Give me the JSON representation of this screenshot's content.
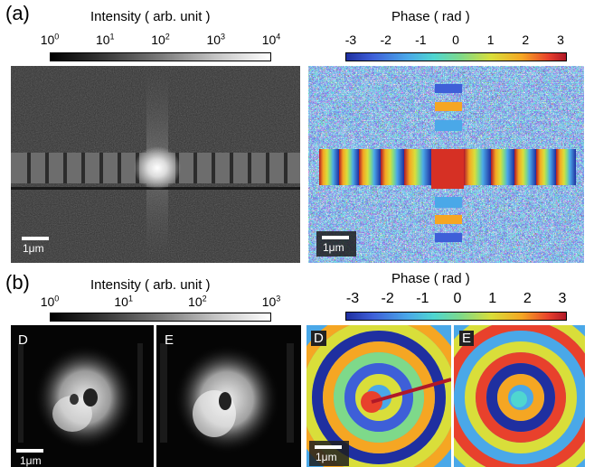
{
  "panel_a": {
    "label": "(a)",
    "intensity": {
      "title": "Intensity ( arb. unit )",
      "ticks": [
        {
          "base": "10",
          "exp": "0"
        },
        {
          "base": "10",
          "exp": "1"
        },
        {
          "base": "10",
          "exp": "2"
        },
        {
          "base": "10",
          "exp": "3"
        },
        {
          "base": "10",
          "exp": "4"
        }
      ],
      "scale": "1μm"
    },
    "phase": {
      "title": "Phase ( rad )",
      "ticks": [
        "-3",
        "-2",
        "-1",
        "0",
        "1",
        "2",
        "3"
      ],
      "scale": "1μm"
    }
  },
  "panel_b": {
    "label": "(b)",
    "intensity": {
      "title": "Intensity ( arb. unit )",
      "ticks": [
        {
          "base": "10",
          "exp": "0"
        },
        {
          "base": "10",
          "exp": "1"
        },
        {
          "base": "10",
          "exp": "2"
        },
        {
          "base": "10",
          "exp": "3"
        }
      ],
      "inset_left": "D",
      "inset_right": "E",
      "scale": "1μm"
    },
    "phase": {
      "title": "Phase ( rad )",
      "ticks": [
        "-3",
        "-2",
        "-1",
        "0",
        "1",
        "2",
        "3"
      ],
      "inset_left": "D",
      "inset_right": "E",
      "scale": "1μm"
    }
  },
  "colors": {
    "jet": [
      "#1f2fa0",
      "#3e5fd8",
      "#4aa8e8",
      "#4fd6d0",
      "#7ed98a",
      "#d9de3a",
      "#f5a623",
      "#e8412c",
      "#b01828"
    ]
  }
}
